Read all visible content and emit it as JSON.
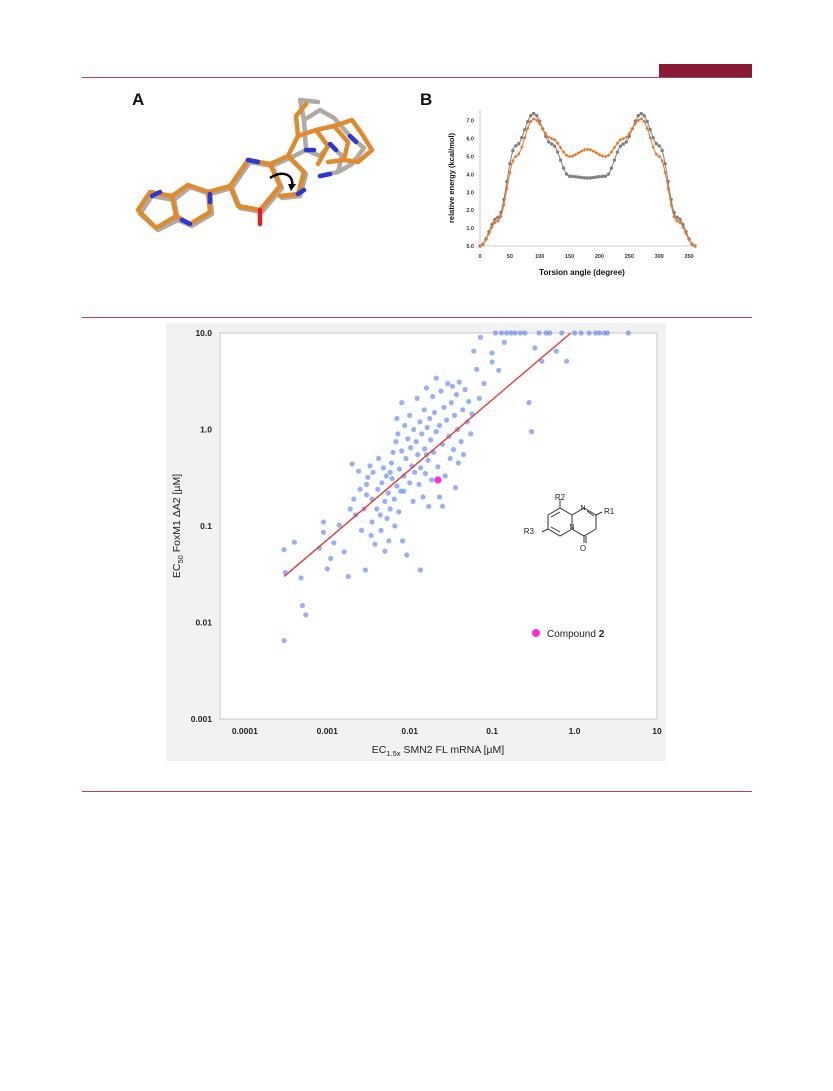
{
  "page": {
    "colors": {
      "rule": "#a8485f",
      "header_block": "#8b1a36"
    }
  },
  "figure_top": {
    "panel_a": {
      "letter": "A",
      "colors": {
        "orange": "#e08a2e",
        "grey": "#a9a9a9",
        "nitrogen": "#2a39d6",
        "oxygen": "#e02020"
      },
      "icons": [
        "molecule-overlay-icon",
        "rotation-arrow-icon"
      ]
    },
    "panel_b": {
      "letter": "B",
      "chart_data": {
        "type": "line",
        "xlabel": "Torsion angle (degree)",
        "ylabel": "relative energy (kcal/mol)",
        "xlim": [
          0,
          360
        ],
        "ylim": [
          0,
          7.6
        ],
        "x_ticks": [
          "0",
          "50",
          "100",
          "150",
          "200",
          "250",
          "300",
          "350"
        ],
        "x_tick_values": [
          0,
          50,
          100,
          150,
          200,
          250,
          300,
          350
        ],
        "y_ticks": [
          "0.0",
          "1.0",
          "2.0",
          "3.0",
          "4.0",
          "5.0",
          "6.0",
          "7.0"
        ],
        "y_tick_values": [
          0,
          1,
          2,
          3,
          4,
          5,
          6,
          7
        ],
        "grid": false,
        "series": [
          {
            "color": "#808080",
            "marker": "circle",
            "x": [
              0,
              30,
              60,
              90,
              120,
              150,
              180,
              210,
              240,
              270,
              300,
              330,
              360
            ],
            "values": [
              0.0,
              1.6,
              5.6,
              7.4,
              5.7,
              3.9,
              3.8,
              3.9,
              5.7,
              7.4,
              5.6,
              1.6,
              0.0
            ]
          },
          {
            "color": "#e8772a",
            "marker": "diamond",
            "x": [
              0,
              30,
              60,
              90,
              120,
              150,
              180,
              210,
              240,
              270,
              300,
              330,
              360
            ],
            "values": [
              0.0,
              1.4,
              5.0,
              7.1,
              6.0,
              5.0,
              5.4,
              5.0,
              6.0,
              7.1,
              5.0,
              1.4,
              0.0
            ]
          }
        ]
      }
    }
  },
  "figure_main": {
    "chart_data": {
      "type": "scatter",
      "xlabel_main": "EC",
      "xlabel_sub": "1.5x",
      "xlabel_rest": " SMN2 FL mRNA [µM]",
      "ylabel_main": "EC",
      "ylabel_sub": "50",
      "ylabel_rest": " FoxM1 ΔA2 [µM]",
      "x_scale": "log",
      "y_scale": "log",
      "xlim": [
        5e-05,
        10
      ],
      "ylim": [
        0.001,
        10
      ],
      "x_ticks": [
        "0.0001",
        "0.001",
        "0.01",
        "0.1",
        "1.0",
        "10"
      ],
      "x_tick_values": [
        0.0001,
        0.001,
        0.01,
        0.1,
        1,
        10
      ],
      "y_ticks": [
        "0.001",
        "0.01",
        "0.1",
        "1.0",
        "10.0"
      ],
      "y_tick_values": [
        0.001,
        0.01,
        0.1,
        1,
        10
      ],
      "grid": false,
      "legend": {
        "placement": "inside-right",
        "label_prefix": "Compound ",
        "label_bold": "2",
        "color": "#ff2bd6"
      },
      "highlight": {
        "name": "Compound 2",
        "x": 0.022,
        "y": 0.3
      },
      "fit_line": {
        "color": "#e23a3a",
        "x": [
          0.0003,
          0.9
        ],
        "y": [
          0.03,
          12
        ]
      },
      "points_color": "#6e8ff0",
      "points": [
        [
          0.0003,
          0.0065
        ],
        [
          0.0003,
          0.057
        ],
        [
          0.00031,
          0.033
        ],
        [
          0.0004,
          0.068
        ],
        [
          0.00048,
          0.029
        ],
        [
          0.0005,
          0.015
        ],
        [
          0.00055,
          0.012
        ],
        [
          0.0008,
          0.059
        ],
        [
          0.0009,
          0.11
        ],
        [
          0.0009,
          0.086
        ],
        [
          0.001,
          0.036
        ],
        [
          0.0011,
          0.046
        ],
        [
          0.0012,
          0.067
        ],
        [
          0.0014,
          0.102
        ],
        [
          0.0016,
          0.054
        ],
        [
          0.0018,
          0.03
        ],
        [
          0.0019,
          0.15
        ],
        [
          0.002,
          0.44
        ],
        [
          0.0021,
          0.19
        ],
        [
          0.0022,
          0.13
        ],
        [
          0.0024,
          0.37
        ],
        [
          0.0025,
          0.24
        ],
        [
          0.0026,
          0.09
        ],
        [
          0.0028,
          0.15
        ],
        [
          0.0029,
          0.035
        ],
        [
          0.003,
          0.27
        ],
        [
          0.003,
          0.21
        ],
        [
          0.0031,
          0.32
        ],
        [
          0.0033,
          0.42
        ],
        [
          0.0034,
          0.08
        ],
        [
          0.0035,
          0.11
        ],
        [
          0.0035,
          0.19
        ],
        [
          0.0036,
          0.36
        ],
        [
          0.0038,
          0.065
        ],
        [
          0.004,
          0.15
        ],
        [
          0.0041,
          0.24
        ],
        [
          0.0042,
          0.5
        ],
        [
          0.0044,
          0.13
        ],
        [
          0.0045,
          0.09
        ],
        [
          0.0046,
          0.28
        ],
        [
          0.0048,
          0.4
        ],
        [
          0.005,
          0.18
        ],
        [
          0.005,
          0.055
        ],
        [
          0.0052,
          0.33
        ],
        [
          0.0053,
          0.12
        ],
        [
          0.0055,
          0.22
        ],
        [
          0.0056,
          0.07
        ],
        [
          0.0058,
          0.15
        ],
        [
          0.006,
          0.45
        ],
        [
          0.0061,
          0.31
        ],
        [
          0.0063,
          0.58
        ],
        [
          0.0065,
          0.19
        ],
        [
          0.0066,
          0.1
        ],
        [
          0.0068,
          0.75
        ],
        [
          0.007,
          0.26
        ],
        [
          0.007,
          1.3
        ],
        [
          0.0072,
          0.9
        ],
        [
          0.0074,
          0.14
        ],
        [
          0.0075,
          0.39
        ],
        [
          0.0078,
          0.23
        ],
        [
          0.008,
          1.9
        ],
        [
          0.008,
          0.6
        ],
        [
          0.0082,
          0.07
        ],
        [
          0.0085,
          0.33
        ],
        [
          0.0087,
          1.1
        ],
        [
          0.009,
          0.5
        ],
        [
          0.0092,
          0.05
        ],
        [
          0.0095,
          0.8
        ],
        [
          0.01,
          0.28
        ],
        [
          0.01,
          1.4
        ],
        [
          0.0103,
          0.65
        ],
        [
          0.0106,
          0.42
        ],
        [
          0.011,
          0.18
        ],
        [
          0.0112,
          1.0
        ],
        [
          0.0115,
          0.36
        ],
        [
          0.012,
          0.75
        ],
        [
          0.0123,
          2.1
        ],
        [
          0.0125,
          0.55
        ],
        [
          0.013,
          0.27
        ],
        [
          0.0133,
          1.2
        ],
        [
          0.0136,
          0.4
        ],
        [
          0.014,
          0.9
        ],
        [
          0.0145,
          0.2
        ],
        [
          0.015,
          1.6
        ],
        [
          0.0152,
          0.63
        ],
        [
          0.0155,
          0.35
        ],
        [
          0.016,
          2.7
        ],
        [
          0.0163,
          1.05
        ],
        [
          0.0167,
          0.48
        ],
        [
          0.017,
          0.16
        ],
        [
          0.0175,
          1.3
        ],
        [
          0.018,
          0.78
        ],
        [
          0.0185,
          0.3
        ],
        [
          0.019,
          2.2
        ],
        [
          0.0195,
          0.58
        ],
        [
          0.02,
          1.5
        ],
        [
          0.021,
          0.95
        ],
        [
          0.021,
          3.4
        ],
        [
          0.022,
          0.41
        ],
        [
          0.023,
          1.1
        ],
        [
          0.023,
          0.2
        ],
        [
          0.024,
          2.5
        ],
        [
          0.025,
          0.7
        ],
        [
          0.026,
          1.7
        ],
        [
          0.027,
          0.33
        ],
        [
          0.028,
          1.25
        ],
        [
          0.029,
          3.0
        ],
        [
          0.03,
          0.85
        ],
        [
          0.031,
          0.5
        ],
        [
          0.032,
          1.9
        ],
        [
          0.033,
          2.8
        ],
        [
          0.034,
          0.62
        ],
        [
          0.035,
          1.4
        ],
        [
          0.036,
          0.25
        ],
        [
          0.037,
          2.3
        ],
        [
          0.038,
          1.0
        ],
        [
          0.039,
          0.45
        ],
        [
          0.04,
          3.1
        ],
        [
          0.042,
          0.75
        ],
        [
          0.044,
          1.6
        ],
        [
          0.045,
          0.55
        ],
        [
          0.047,
          2.6
        ],
        [
          0.05,
          1.2
        ],
        [
          0.052,
          1.95
        ],
        [
          0.055,
          0.9
        ],
        [
          0.057,
          1.45
        ],
        [
          0.06,
          6.5
        ],
        [
          0.065,
          4.2
        ],
        [
          0.07,
          2.1
        ],
        [
          0.072,
          9.0
        ],
        [
          0.08,
          3.0
        ],
        [
          0.1,
          5.0
        ],
        [
          0.1,
          6.2
        ],
        [
          0.11,
          10
        ],
        [
          0.12,
          4.1
        ],
        [
          0.13,
          10
        ],
        [
          0.14,
          8.0
        ],
        [
          0.15,
          10
        ],
        [
          0.17,
          10
        ],
        [
          0.19,
          10
        ],
        [
          0.22,
          10
        ],
        [
          0.25,
          10
        ],
        [
          0.28,
          1.9
        ],
        [
          0.3,
          0.95
        ],
        [
          0.33,
          7.0
        ],
        [
          0.37,
          10
        ],
        [
          0.4,
          5.1
        ],
        [
          0.45,
          10
        ],
        [
          0.5,
          10
        ],
        [
          0.6,
          6.5
        ],
        [
          0.7,
          10
        ],
        [
          0.8,
          5.1
        ],
        [
          1.0,
          10
        ],
        [
          1.2,
          10
        ],
        [
          1.5,
          10
        ],
        [
          1.8,
          10
        ],
        [
          2.0,
          10
        ],
        [
          2.3,
          10
        ],
        [
          2.5,
          10
        ],
        [
          0.0135,
          0.035
        ],
        [
          0.025,
          0.16
        ],
        [
          0.016,
          0.55
        ],
        [
          0.0058,
          0.36
        ],
        [
          0.0085,
          0.23
        ],
        [
          4.5,
          10
        ]
      ]
    },
    "inset_structure": {
      "labels": {
        "r1": "R1",
        "r2": "R2",
        "r3": "R3",
        "o": "O"
      },
      "icon": "pyrido-pyrimidinone-scaffold-icon"
    }
  }
}
